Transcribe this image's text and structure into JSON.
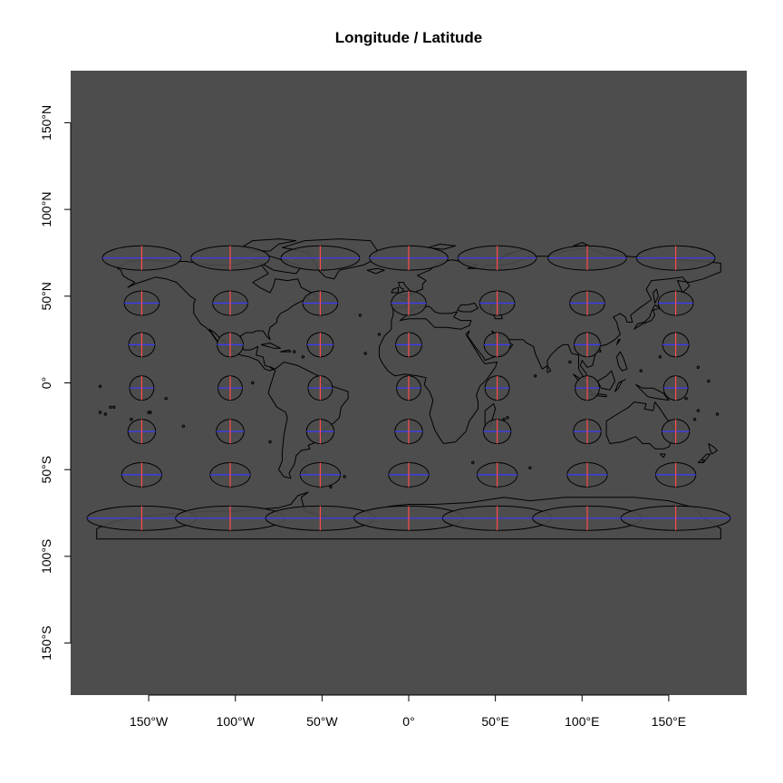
{
  "chart_data": {
    "type": "map",
    "title": "Longitude / Latitude",
    "projection": "longitude/latitude (equirectangular)",
    "panel_color": "#4d4d4d",
    "coastline_color": "#000000",
    "indicatrix_fill": "#4d4d4d",
    "indicatrix_edge": "#000000",
    "axis_x_color": "#3a3aff",
    "axis_y_color": "#ff4a4a",
    "xlim": [
      -195,
      195
    ],
    "ylim": [
      -180,
      180
    ],
    "x_ticks": [
      {
        "value": -150,
        "label": "150°W"
      },
      {
        "value": -100,
        "label": "100°W"
      },
      {
        "value": -50,
        "label": "50°W"
      },
      {
        "value": 0,
        "label": "0°"
      },
      {
        "value": 50,
        "label": "50°E"
      },
      {
        "value": 100,
        "label": "100°E"
      },
      {
        "value": 150,
        "label": "150°E"
      }
    ],
    "y_ticks": [
      {
        "value": 150,
        "label": "150°N"
      },
      {
        "value": 100,
        "label": "100°N"
      },
      {
        "value": 50,
        "label": "50°N"
      },
      {
        "value": 0,
        "label": "0°"
      },
      {
        "value": -50,
        "label": "50°S"
      },
      {
        "value": -100,
        "label": "100°S"
      },
      {
        "value": -150,
        "label": "150°S"
      }
    ],
    "indicatrix_longitudes": [
      -154,
      -103,
      -51,
      0,
      51,
      103,
      154
    ],
    "indicatrix_latitudes": [
      72,
      46,
      22,
      -3,
      -28,
      -53,
      -78
    ],
    "indicatrix_base_radius_deg": 7
  }
}
